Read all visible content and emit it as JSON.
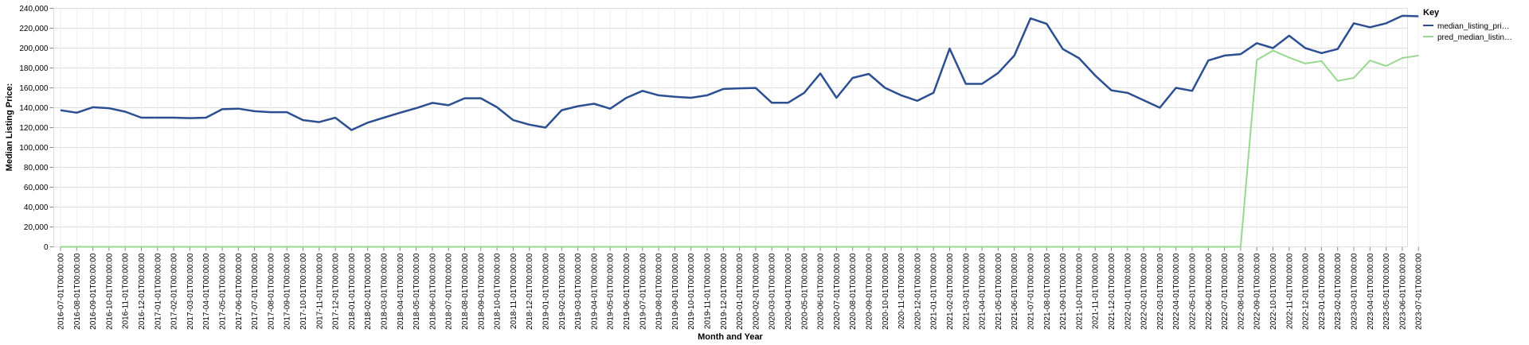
{
  "chart_data": {
    "type": "line",
    "xlabel": "Month and Year",
    "ylabel": "Median Listing Price:",
    "ylim": [
      0,
      240000
    ],
    "yticks": [
      "0",
      "20,000",
      "40,000",
      "60,000",
      "80,000",
      "100,000",
      "120,000",
      "140,000",
      "160,000",
      "180,000",
      "200,000",
      "220,000",
      "240,000"
    ],
    "grid": true,
    "legend": {
      "title": "Key",
      "position": "right",
      "labels": [
        "median_listing_pri…",
        "pred_median_listin…"
      ]
    },
    "x": [
      "2016-07-01T00:00:00",
      "2016-08-01T00:00:00",
      "2016-09-01T00:00:00",
      "2016-10-01T00:00:00",
      "2016-11-01T00:00:00",
      "2016-12-01T00:00:00",
      "2017-01-01T00:00:00",
      "2017-02-01T00:00:00",
      "2017-03-01T00:00:00",
      "2017-04-01T00:00:00",
      "2017-05-01T00:00:00",
      "2017-06-01T00:00:00",
      "2017-07-01T00:00:00",
      "2017-08-01T00:00:00",
      "2017-09-01T00:00:00",
      "2017-10-01T00:00:00",
      "2017-11-01T00:00:00",
      "2017-12-01T00:00:00",
      "2018-01-01T00:00:00",
      "2018-02-01T00:00:00",
      "2018-03-01T00:00:00",
      "2018-04-01T00:00:00",
      "2018-05-01T00:00:00",
      "2018-06-01T00:00:00",
      "2018-07-01T00:00:00",
      "2018-08-01T00:00:00",
      "2018-09-01T00:00:00",
      "2018-10-01T00:00:00",
      "2018-11-01T00:00:00",
      "2018-12-01T00:00:00",
      "2019-01-01T00:00:00",
      "2019-02-01T00:00:00",
      "2019-03-01T00:00:00",
      "2019-04-01T00:00:00",
      "2019-05-01T00:00:00",
      "2019-06-01T00:00:00",
      "2019-07-01T00:00:00",
      "2019-08-01T00:00:00",
      "2019-09-01T00:00:00",
      "2019-10-01T00:00:00",
      "2019-11-01T00:00:00",
      "2019-12-01T00:00:00",
      "2020-01-01T00:00:00",
      "2020-02-01T00:00:00",
      "2020-03-01T00:00:00",
      "2020-04-01T00:00:00",
      "2020-05-01T00:00:00",
      "2020-06-01T00:00:00",
      "2020-07-01T00:00:00",
      "2020-08-01T00:00:00",
      "2020-09-01T00:00:00",
      "2020-10-01T00:00:00",
      "2020-11-01T00:00:00",
      "2020-12-01T00:00:00",
      "2021-01-01T00:00:00",
      "2021-02-01T00:00:00",
      "2021-03-01T00:00:00",
      "2021-04-01T00:00:00",
      "2021-05-01T00:00:00",
      "2021-06-01T00:00:00",
      "2021-07-01T00:00:00",
      "2021-08-01T00:00:00",
      "2021-09-01T00:00:00",
      "2021-10-01T00:00:00",
      "2021-11-01T00:00:00",
      "2021-12-01T00:00:00",
      "2022-01-01T00:00:00",
      "2022-02-01T00:00:00",
      "2022-03-01T00:00:00",
      "2022-04-01T00:00:00",
      "2022-05-01T00:00:00",
      "2022-06-01T00:00:00",
      "2022-07-01T00:00:00",
      "2022-08-01T00:00:00",
      "2022-09-01T00:00:00",
      "2022-10-01T00:00:00",
      "2022-11-01T00:00:00",
      "2022-12-01T00:00:00",
      "2023-01-01T00:00:00",
      "2023-02-01T00:00:00",
      "2023-03-01T00:00:00",
      "2023-04-01T00:00:00",
      "2023-05-01T00:00:00",
      "2023-06-01T00:00:00",
      "2023-07-01T00:00:00"
    ],
    "series": [
      {
        "name": "median_listing_pri…",
        "color": "#2b4f91",
        "values": [
          137500,
          135000,
          140500,
          139500,
          136000,
          130000,
          130000,
          130000,
          129500,
          130000,
          138500,
          139000,
          136500,
          135500,
          135500,
          127500,
          125500,
          129900,
          117500,
          125000,
          130000,
          135000,
          139500,
          144900,
          142500,
          149500,
          149500,
          140500,
          127500,
          123000,
          120000,
          137500,
          141500,
          144000,
          139000,
          149900,
          157000,
          152500,
          151000,
          150000,
          152500,
          158900,
          159500,
          159900,
          145000,
          145000,
          155000,
          174500,
          150000,
          170000,
          174000,
          160000,
          152500,
          147000,
          155000,
          199500,
          164000,
          164000,
          175000,
          192500,
          229900,
          224500,
          199000,
          189900,
          172500,
          157500,
          155000,
          147500,
          140000,
          160000,
          157000,
          187500,
          192500,
          193900,
          205000,
          200000,
          212500,
          200000,
          195000,
          199000,
          225000,
          221000,
          225000,
          232500,
          232000
        ]
      },
      {
        "name": "pred_median_listin…",
        "color": "#98d891",
        "values": [
          0,
          0,
          0,
          0,
          0,
          0,
          0,
          0,
          0,
          0,
          0,
          0,
          0,
          0,
          0,
          0,
          0,
          0,
          0,
          0,
          0,
          0,
          0,
          0,
          0,
          0,
          0,
          0,
          0,
          0,
          0,
          0,
          0,
          0,
          0,
          0,
          0,
          0,
          0,
          0,
          0,
          0,
          0,
          0,
          0,
          0,
          0,
          0,
          0,
          0,
          0,
          0,
          0,
          0,
          0,
          0,
          0,
          0,
          0,
          0,
          0,
          0,
          0,
          0,
          0,
          0,
          0,
          0,
          0,
          0,
          0,
          0,
          0,
          0,
          188000,
          197500,
          190500,
          184500,
          187000,
          167000,
          170000,
          187500,
          182000,
          190000,
          192500
        ]
      }
    ]
  }
}
